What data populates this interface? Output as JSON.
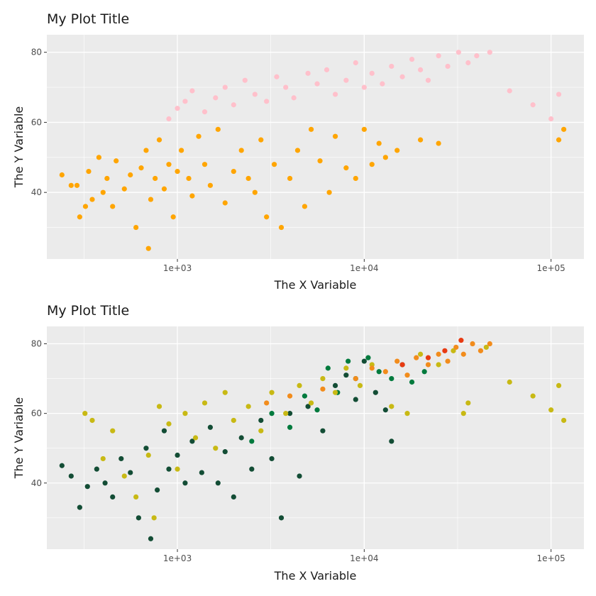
{
  "chart_data": [
    {
      "type": "scatter",
      "title": "My Plot Title",
      "xlabel": "The X Variable",
      "ylabel": "The Y Variable",
      "x_scale": "log10",
      "xlim": [
        200,
        150000
      ],
      "ylim": [
        21,
        85
      ],
      "x_ticks": [
        1000,
        10000,
        100000
      ],
      "x_tick_labels": [
        "1e+03",
        "1e+04",
        "1e+05"
      ],
      "y_ticks": [
        40,
        60,
        80
      ],
      "y_tick_labels": [
        "40",
        "60",
        "80"
      ],
      "grid": true,
      "legend": "none",
      "colors": {
        "panel": "#EBEBEB",
        "grid": "#FFFFFF",
        "orange": "#FFA500",
        "pink": "#FFC0CB"
      },
      "series": [
        {
          "color": "#FFA500",
          "points": [
            [
              241,
              45
            ],
            [
              270,
              42
            ],
            [
              290,
              42
            ],
            [
              300,
              33
            ],
            [
              322,
              36
            ],
            [
              335,
              46
            ],
            [
              350,
              38
            ],
            [
              380,
              50
            ],
            [
              400,
              40
            ],
            [
              420,
              44
            ],
            [
              450,
              36
            ],
            [
              470,
              49
            ],
            [
              520,
              41
            ],
            [
              560,
              45
            ],
            [
              600,
              30
            ],
            [
              640,
              47
            ],
            [
              680,
              52
            ],
            [
              700,
              24
            ],
            [
              720,
              38
            ],
            [
              760,
              44
            ],
            [
              800,
              55
            ],
            [
              850,
              41
            ],
            [
              900,
              48
            ],
            [
              950,
              33
            ],
            [
              1000,
              46
            ],
            [
              1050,
              52
            ],
            [
              1150,
              44
            ],
            [
              1200,
              39
            ],
            [
              1300,
              56
            ],
            [
              1400,
              48
            ],
            [
              1500,
              42
            ],
            [
              1650,
              58
            ],
            [
              1800,
              37
            ],
            [
              2000,
              46
            ],
            [
              2200,
              52
            ],
            [
              2400,
              44
            ],
            [
              2600,
              40
            ],
            [
              2800,
              55
            ],
            [
              3000,
              33
            ],
            [
              3300,
              48
            ],
            [
              3600,
              30
            ],
            [
              4000,
              44
            ],
            [
              4400,
              52
            ],
            [
              4800,
              36
            ],
            [
              5200,
              58
            ],
            [
              5800,
              49
            ],
            [
              6500,
              40
            ],
            [
              7000,
              56
            ],
            [
              8000,
              47
            ],
            [
              9000,
              44
            ],
            [
              10000,
              58
            ],
            [
              11000,
              48
            ],
            [
              12000,
              54
            ],
            [
              13000,
              50
            ],
            [
              15000,
              52
            ],
            [
              20000,
              55
            ],
            [
              25000,
              54
            ],
            [
              110000,
              55
            ],
            [
              117000,
              58
            ]
          ]
        },
        {
          "color": "#FFC0CB",
          "points": [
            [
              900,
              61
            ],
            [
              1000,
              64
            ],
            [
              1100,
              66
            ],
            [
              1200,
              69
            ],
            [
              1400,
              63
            ],
            [
              1600,
              67
            ],
            [
              1800,
              70
            ],
            [
              2000,
              65
            ],
            [
              2300,
              72
            ],
            [
              2600,
              68
            ],
            [
              3000,
              66
            ],
            [
              3400,
              73
            ],
            [
              3800,
              70
            ],
            [
              4200,
              67
            ],
            [
              5000,
              74
            ],
            [
              5600,
              71
            ],
            [
              6300,
              75
            ],
            [
              7000,
              68
            ],
            [
              8000,
              72
            ],
            [
              9000,
              77
            ],
            [
              10000,
              70
            ],
            [
              11000,
              74
            ],
            [
              12500,
              71
            ],
            [
              14000,
              76
            ],
            [
              16000,
              73
            ],
            [
              18000,
              78
            ],
            [
              20000,
              75
            ],
            [
              22000,
              72
            ],
            [
              25000,
              79
            ],
            [
              28000,
              76
            ],
            [
              32000,
              80
            ],
            [
              36000,
              77
            ],
            [
              40000,
              79
            ],
            [
              47000,
              80
            ],
            [
              60000,
              69
            ],
            [
              80000,
              65
            ],
            [
              100000,
              61
            ],
            [
              110000,
              68
            ]
          ]
        }
      ]
    },
    {
      "type": "scatter",
      "title": "My Plot Title",
      "xlabel": "The X Variable",
      "ylabel": "The Y Variable",
      "x_scale": "log10",
      "xlim": [
        200,
        150000
      ],
      "ylim": [
        21,
        85
      ],
      "x_ticks": [
        1000,
        10000,
        100000
      ],
      "x_tick_labels": [
        "1e+03",
        "1e+04",
        "1e+05"
      ],
      "y_ticks": [
        40,
        60,
        80
      ],
      "y_tick_labels": [
        "40",
        "60",
        "80"
      ],
      "grid": true,
      "legend": "none",
      "colors": {
        "panel": "#EBEBEB",
        "grid": "#FFFFFF",
        "dark-green": "#134D35",
        "green": "#007A3D",
        "olive": "#C8B914",
        "orange": "#F28C1C",
        "red": "#E83A12"
      },
      "series": [
        {
          "color": "#134D35",
          "points": [
            [
              241,
              45
            ],
            [
              270,
              42
            ],
            [
              300,
              33
            ],
            [
              330,
              39
            ],
            [
              370,
              44
            ],
            [
              410,
              40
            ],
            [
              450,
              36
            ],
            [
              500,
              47
            ],
            [
              560,
              43
            ],
            [
              620,
              30
            ],
            [
              680,
              50
            ],
            [
              720,
              24
            ],
            [
              780,
              38
            ],
            [
              850,
              55
            ],
            [
              900,
              44
            ],
            [
              1000,
              48
            ],
            [
              1100,
              40
            ],
            [
              1200,
              52
            ],
            [
              1350,
              43
            ],
            [
              1500,
              56
            ],
            [
              1650,
              40
            ],
            [
              1800,
              49
            ],
            [
              2000,
              36
            ],
            [
              2200,
              53
            ],
            [
              2500,
              44
            ],
            [
              2800,
              58
            ],
            [
              3200,
              47
            ],
            [
              3600,
              30
            ],
            [
              4000,
              60
            ],
            [
              4500,
              42
            ],
            [
              5000,
              62
            ],
            [
              6000,
              55
            ],
            [
              7000,
              68
            ],
            [
              8000,
              71
            ],
            [
              9000,
              64
            ],
            [
              10000,
              75
            ],
            [
              11500,
              66
            ],
            [
              13000,
              61
            ],
            [
              14000,
              52
            ]
          ]
        },
        {
          "color": "#007A3D",
          "points": [
            [
              2500,
              52
            ],
            [
              3200,
              60
            ],
            [
              4000,
              56
            ],
            [
              4800,
              65
            ],
            [
              5600,
              61
            ],
            [
              6400,
              73
            ],
            [
              7200,
              66
            ],
            [
              8200,
              75
            ],
            [
              9000,
              70
            ],
            [
              10500,
              76
            ],
            [
              12000,
              72
            ],
            [
              14000,
              70
            ],
            [
              16000,
              74
            ],
            [
              18000,
              69
            ],
            [
              21000,
              72
            ]
          ]
        },
        {
          "color": "#C8B914",
          "points": [
            [
              320,
              60
            ],
            [
              350,
              58
            ],
            [
              400,
              47
            ],
            [
              450,
              55
            ],
            [
              520,
              42
            ],
            [
              600,
              36
            ],
            [
              700,
              48
            ],
            [
              750,
              30
            ],
            [
              800,
              62
            ],
            [
              900,
              57
            ],
            [
              1000,
              44
            ],
            [
              1100,
              60
            ],
            [
              1250,
              53
            ],
            [
              1400,
              63
            ],
            [
              1600,
              50
            ],
            [
              1800,
              66
            ],
            [
              2000,
              58
            ],
            [
              2400,
              62
            ],
            [
              2800,
              55
            ],
            [
              3200,
              66
            ],
            [
              3800,
              60
            ],
            [
              4500,
              68
            ],
            [
              5200,
              63
            ],
            [
              6000,
              70
            ],
            [
              7000,
              66
            ],
            [
              8000,
              73
            ],
            [
              9500,
              68
            ],
            [
              11000,
              74
            ],
            [
              14000,
              62
            ],
            [
              17000,
              60
            ],
            [
              20000,
              77
            ],
            [
              25000,
              74
            ],
            [
              30000,
              78
            ],
            [
              34000,
              60
            ],
            [
              36000,
              63
            ],
            [
              45000,
              79
            ],
            [
              60000,
              69
            ],
            [
              80000,
              65
            ],
            [
              100000,
              61
            ],
            [
              110000,
              68
            ],
            [
              117000,
              58
            ]
          ]
        },
        {
          "color": "#F28C1C",
          "points": [
            [
              3000,
              63
            ],
            [
              4000,
              65
            ],
            [
              6000,
              67
            ],
            [
              9000,
              70
            ],
            [
              11000,
              73
            ],
            [
              13000,
              72
            ],
            [
              15000,
              75
            ],
            [
              17000,
              71
            ],
            [
              19000,
              76
            ],
            [
              22000,
              74
            ],
            [
              25000,
              77
            ],
            [
              28000,
              75
            ],
            [
              31000,
              79
            ],
            [
              34000,
              77
            ],
            [
              38000,
              80
            ],
            [
              42000,
              78
            ],
            [
              47000,
              80
            ]
          ]
        },
        {
          "color": "#E83A12",
          "points": [
            [
              16000,
              74
            ],
            [
              22000,
              76
            ],
            [
              27000,
              78
            ],
            [
              33000,
              81
            ]
          ]
        }
      ]
    }
  ]
}
